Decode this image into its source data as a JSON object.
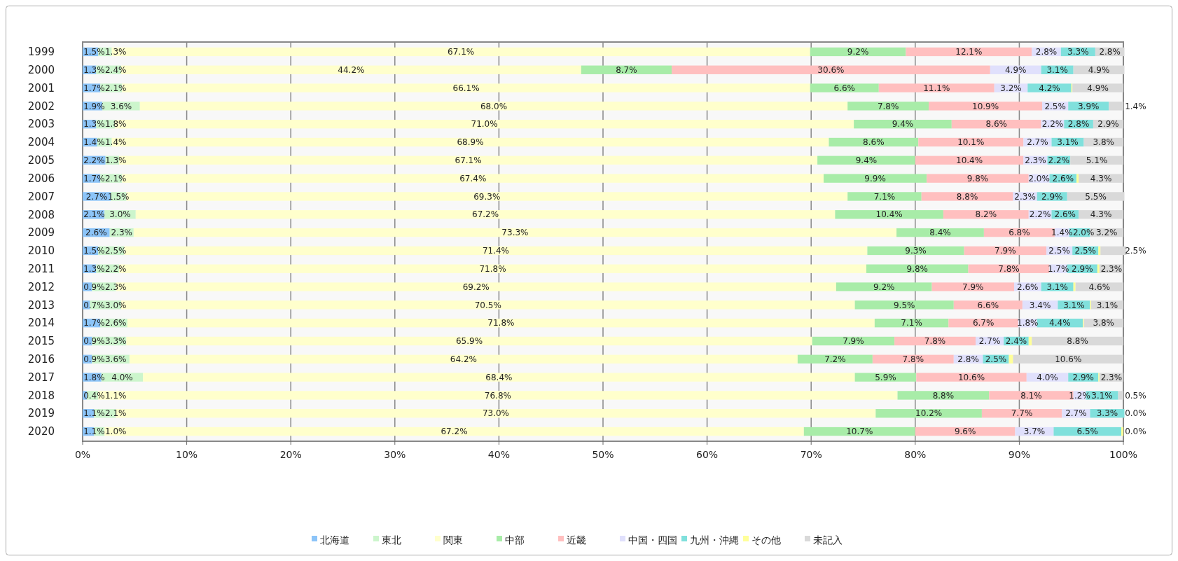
{
  "chart_data": {
    "type": "bar",
    "orientation": "horizontal",
    "stacked": true,
    "categories": [
      "1999",
      "2000",
      "2001",
      "2002",
      "2003",
      "2004",
      "2005",
      "2006",
      "2007",
      "2008",
      "2009",
      "2010",
      "2011",
      "2012",
      "2013",
      "2014",
      "2015",
      "2016",
      "2017",
      "2018",
      "2019",
      "2020"
    ],
    "xlim": [
      0,
      100
    ],
    "xticks": [
      {
        "value": 0,
        "label": "0%"
      },
      {
        "value": 10,
        "label": "10%"
      },
      {
        "value": 20,
        "label": "20%"
      },
      {
        "value": 30,
        "label": "30%"
      },
      {
        "value": 40,
        "label": "40%"
      },
      {
        "value": 50,
        "label": "50%"
      },
      {
        "value": 60,
        "label": "60%"
      },
      {
        "value": 70,
        "label": "70%"
      },
      {
        "value": 80,
        "label": "80%"
      },
      {
        "value": 90,
        "label": "90%"
      },
      {
        "value": 100,
        "label": "100%"
      }
    ],
    "grid": "x",
    "legend": "bottom",
    "series": [
      {
        "name": "北海道",
        "color": "#8cc4f8",
        "values": [
          1.5,
          1.3,
          1.7,
          1.9,
          1.3,
          1.4,
          2.2,
          1.7,
          2.7,
          2.1,
          2.6,
          1.5,
          1.3,
          0.9,
          0.7,
          1.7,
          0.9,
          0.9,
          1.8,
          0.4,
          1.1,
          1.1
        ],
        "value_labels": [
          "1.5%",
          "1.3%",
          "1.7%",
          "1.9%",
          "1.3%",
          "1.4%",
          "2.2%",
          "1.7%",
          "2.7%",
          "2.1%",
          "2.6%",
          "1.5%",
          "1.3%",
          "0.9%",
          "0.7%",
          "1.7%",
          "0.9%",
          "0.9%",
          "1.8%",
          "0.4%",
          "1.1%",
          "1.1%"
        ]
      },
      {
        "name": "東北",
        "color": "#ccf5cc",
        "values": [
          1.3,
          2.4,
          2.1,
          3.6,
          1.8,
          1.4,
          1.3,
          2.1,
          1.5,
          3.0,
          2.3,
          2.5,
          2.2,
          2.3,
          3.0,
          2.6,
          3.3,
          3.6,
          4.0,
          1.1,
          2.1,
          1.0
        ],
        "value_labels": [
          "1.3%",
          "2.4%",
          "2.1%",
          "3.6%",
          "1.8%",
          "1.4%",
          "1.3%",
          "2.1%",
          "1.5%",
          "3.0%",
          "2.3%",
          "2.5%",
          "2.2%",
          "2.3%",
          "3.0%",
          "2.6%",
          "3.3%",
          "3.6%",
          "4.0%",
          "1.1%",
          "2.1%",
          "1.0%"
        ]
      },
      {
        "name": "関東",
        "color": "#ffffcc",
        "values": [
          67.1,
          44.2,
          66.1,
          68.0,
          71.0,
          68.9,
          67.1,
          67.4,
          69.3,
          67.2,
          73.3,
          71.4,
          71.8,
          69.2,
          70.5,
          71.8,
          65.9,
          64.2,
          68.4,
          76.8,
          73.0,
          67.2
        ],
        "value_labels": [
          "67.1%",
          "44.2%",
          "66.1%",
          "68.0%",
          "71.0%",
          "68.9%",
          "67.1%",
          "67.4%",
          "69.3%",
          "67.2%",
          "73.3%",
          "71.4%",
          "71.8%",
          "69.2%",
          "70.5%",
          "71.8%",
          "65.9%",
          "64.2%",
          "68.4%",
          "76.8%",
          "73.0%",
          "67.2%"
        ]
      },
      {
        "name": "中部",
        "color": "#a8eca8",
        "values": [
          9.2,
          8.7,
          6.6,
          7.8,
          9.4,
          8.6,
          9.4,
          9.9,
          7.1,
          10.4,
          8.4,
          9.3,
          9.8,
          9.2,
          9.5,
          7.1,
          7.9,
          7.2,
          5.9,
          8.8,
          10.2,
          10.7
        ],
        "value_labels": [
          "9.2%",
          "8.7%",
          "6.6%",
          "7.8%",
          "9.4%",
          "8.6%",
          "9.4%",
          "9.9%",
          "7.1%",
          "10.4%",
          "8.4%",
          "9.3%",
          "9.8%",
          "9.2%",
          "9.5%",
          "7.1%",
          "7.9%",
          "7.2%",
          "5.9%",
          "8.8%",
          "10.2%",
          "10.7%"
        ]
      },
      {
        "name": "近畿",
        "color": "#ffbfbf",
        "values": [
          12.1,
          30.6,
          11.1,
          10.9,
          8.6,
          10.1,
          10.4,
          9.8,
          8.8,
          8.2,
          6.8,
          7.9,
          7.8,
          7.9,
          6.6,
          6.7,
          7.8,
          7.8,
          10.6,
          8.1,
          7.7,
          9.6
        ],
        "value_labels": [
          "12.1%",
          "30.6%",
          "11.1%",
          "10.9%",
          "8.6%",
          "10.1%",
          "10.4%",
          "9.8%",
          "8.8%",
          "8.2%",
          "6.8%",
          "7.9%",
          "7.8%",
          "7.9%",
          "6.6%",
          "6.7%",
          "7.8%",
          "7.8%",
          "10.6%",
          "8.1%",
          "7.7%",
          "9.6%"
        ]
      },
      {
        "name": "中国・四国",
        "color": "#e0e0fc",
        "values": [
          2.8,
          4.9,
          3.2,
          2.5,
          2.2,
          2.7,
          2.3,
          2.0,
          2.3,
          2.2,
          1.4,
          2.5,
          1.7,
          2.6,
          3.4,
          1.8,
          2.7,
          2.8,
          4.0,
          1.2,
          2.7,
          3.7
        ],
        "value_labels": [
          "2.8%",
          "4.9%",
          "3.2%",
          "2.5%",
          "2.2%",
          "2.7%",
          "2.3%",
          "2.0%",
          "2.3%",
          "2.2%",
          "1.4%",
          "2.5%",
          "1.7%",
          "2.6%",
          "3.4%",
          "1.8%",
          "2.7%",
          "2.8%",
          "4.0%",
          "1.2%",
          "2.7%",
          "3.7%"
        ]
      },
      {
        "name": "九州・沖縄",
        "color": "#80e0dc",
        "values": [
          3.3,
          3.1,
          4.2,
          3.9,
          2.8,
          3.1,
          2.2,
          2.6,
          2.9,
          2.6,
          2.0,
          2.5,
          2.9,
          3.1,
          3.1,
          4.4,
          2.4,
          2.5,
          2.9,
          3.1,
          3.3,
          6.5
        ],
        "value_labels": [
          "3.3%",
          "3.1%",
          "4.2%",
          "3.9%",
          "2.8%",
          "3.1%",
          "2.2%",
          "2.6%",
          "2.9%",
          "2.6%",
          "2.0%",
          "2.5%",
          "2.9%",
          "3.1%",
          "3.1%",
          "4.4%",
          "2.4%",
          "2.5%",
          "2.9%",
          "3.1%",
          "3.3%",
          "6.5%"
        ]
      },
      {
        "name": "その他",
        "color": "#ffff99",
        "values": [
          0,
          0,
          0.1,
          0,
          0,
          0,
          0,
          0.2,
          0,
          0,
          0,
          0.2,
          0.2,
          0.2,
          0.1,
          0.1,
          0.3,
          0.4,
          0.1,
          0,
          0,
          0.2
        ]
      },
      {
        "name": "未記入",
        "color": "#d9d9d9",
        "values": [
          2.8,
          4.9,
          4.9,
          1.4,
          2.9,
          3.8,
          5.1,
          4.3,
          5.5,
          4.3,
          3.2,
          2.5,
          2.3,
          4.6,
          3.1,
          3.8,
          8.8,
          10.6,
          2.3,
          0.5,
          0.0,
          0.0
        ],
        "value_labels": [
          "2.8%",
          "4.9%",
          "4.9%",
          "1.4%",
          "2.9%",
          "3.8%",
          "5.1%",
          "4.3%",
          "5.5%",
          "4.3%",
          "3.2%",
          "2.5%",
          "2.3%",
          "4.6%",
          "3.1%",
          "3.8%",
          "8.8%",
          "10.6%",
          "2.3%",
          "0.5%",
          "0.0%",
          "0.0%"
        ]
      }
    ]
  }
}
